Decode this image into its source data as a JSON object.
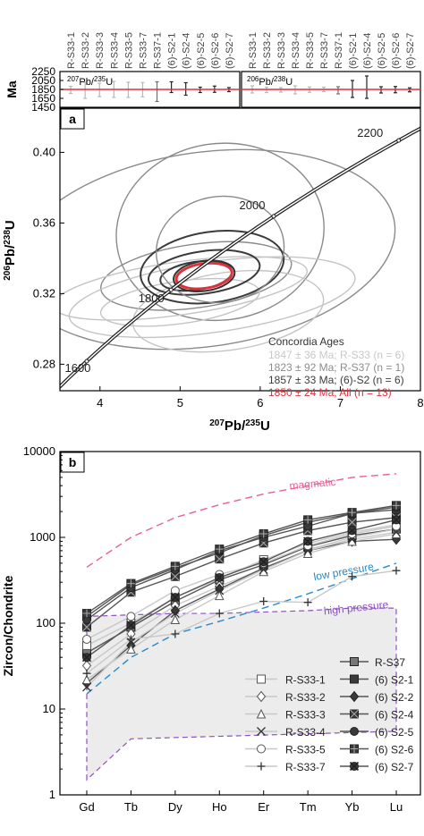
{
  "chart_data": [
    {
      "type": "scatter",
      "panel": "top-left",
      "label": "207Pb/235U",
      "ylabel": "Ma",
      "ylim": [
        1450,
        2250
      ],
      "yticks": [
        1450,
        1650,
        1850,
        2050,
        2250
      ],
      "samples": [
        "R-S33-1",
        "R-S33-2",
        "R-S33-3",
        "R-S33-4",
        "R-S33-5",
        "R-S33-7",
        "R-S37-1",
        "(6)-S2-1",
        "(6)-S2-4",
        "(6)-S2-5",
        "(6)-S2-6",
        "(6)-S2-7"
      ],
      "ages": [
        1840,
        1830,
        1840,
        1850,
        1840,
        1845,
        1800,
        1900,
        1860,
        1840,
        1855,
        1845
      ],
      "errors": [
        80,
        180,
        150,
        180,
        170,
        160,
        220,
        120,
        140,
        60,
        70,
        45
      ],
      "mean": 1850
    },
    {
      "type": "scatter",
      "panel": "top-right",
      "label": "206Pb/238U",
      "ylim": [
        1450,
        2250
      ],
      "samples": [
        "R-S33-1",
        "R-S33-2",
        "R-S33-3",
        "R-S33-4",
        "R-S33-5",
        "R-S33-7",
        "R-S37-1",
        "(6)-S2-1",
        "(6)-S2-4",
        "(6)-S2-5",
        "(6)-S2-6",
        "(6)-S2-7"
      ],
      "ages": [
        1850,
        1840,
        1840,
        1840,
        1845,
        1850,
        1830,
        1860,
        1900,
        1840,
        1845,
        1840
      ],
      "errors": [
        80,
        60,
        50,
        90,
        60,
        50,
        80,
        190,
        250,
        70,
        70,
        45
      ],
      "mean": 1850
    },
    {
      "type": "scatter",
      "panel": "a",
      "panel_label": "a",
      "xlabel": "207Pb/235U",
      "ylabel": "206Pb/238U",
      "xlim": [
        3.5,
        8
      ],
      "ylim": [
        0.265,
        0.425
      ],
      "xticks": [
        4,
        5,
        6,
        7,
        8
      ],
      "yticks": [
        0.28,
        0.32,
        0.36,
        0.4
      ],
      "concordia_labels": [
        "1600",
        "1800",
        "2000",
        "2200"
      ],
      "concordia_ages": [
        1600,
        1800,
        2000,
        2200
      ],
      "ellipses": [
        {
          "x": 5.3,
          "y": 0.345,
          "rx": 2.4,
          "ry": 0.055,
          "color": "gray"
        },
        {
          "x": 5.5,
          "y": 0.355,
          "rx": 1.3,
          "ry": 0.05,
          "color": "gray"
        },
        {
          "x": 5.2,
          "y": 0.33,
          "rx": 1.2,
          "ry": 0.018,
          "color": "gray"
        },
        {
          "x": 5.0,
          "y": 0.323,
          "rx": 1.6,
          "ry": 0.015,
          "color": "lightgray"
        },
        {
          "x": 5.4,
          "y": 0.318,
          "rx": 1.8,
          "ry": 0.02,
          "color": "lightgray"
        },
        {
          "x": 5.6,
          "y": 0.31,
          "rx": 1.2,
          "ry": 0.022,
          "color": "lightgray"
        },
        {
          "x": 5.0,
          "y": 0.315,
          "rx": 1.0,
          "ry": 0.012,
          "color": "lightgray"
        },
        {
          "x": 5.3,
          "y": 0.332,
          "rx": 0.7,
          "ry": 0.012,
          "color": "dark"
        },
        {
          "x": 5.4,
          "y": 0.335,
          "rx": 0.9,
          "ry": 0.02,
          "color": "dark"
        },
        {
          "x": 5.2,
          "y": 0.33,
          "rx": 0.45,
          "ry": 0.008,
          "color": "dark"
        },
        {
          "x": 5.5,
          "y": 0.345,
          "rx": 0.8,
          "ry": 0.03,
          "color": "gray"
        },
        {
          "x": 5.3,
          "y": 0.33,
          "rx": 0.35,
          "ry": 0.007,
          "color": "red"
        }
      ],
      "legend_title": "Concordia Ages",
      "legend": [
        {
          "text": "1847 ± 36 Ma; R-S33 (n = 6)",
          "color": "#c8c8c8"
        },
        {
          "text": "1823 ± 92 Ma; R-S37 (n = 1)",
          "color": "#8c8c8c"
        },
        {
          "text": "1857 ± 33 Ma; (6)-S2 (n = 6)",
          "color": "#3c3c3c"
        },
        {
          "text": "1850 ± 24 Ma; All (n = 13)",
          "color": "#e0303a"
        }
      ]
    },
    {
      "type": "line",
      "panel": "b",
      "panel_label": "b",
      "ylabel": "Zircon/Chondrite",
      "yscale": "log",
      "ylim": [
        1,
        10000
      ],
      "yticks": [
        1,
        10,
        100,
        1000,
        10000
      ],
      "categories": [
        "Gd",
        "Tb",
        "Dy",
        "Ho",
        "Er",
        "Tm",
        "Yb",
        "Lu"
      ],
      "series": [
        {
          "name": "R-S37",
          "marker": "square-filled-gray",
          "values": [
            45,
            90,
            180,
            320,
            480,
            780,
            1050,
            1250
          ]
        },
        {
          "name": "R-S33-1",
          "marker": "square-open",
          "values": [
            55,
            100,
            200,
            330,
            550,
            850,
            1150,
            1400
          ]
        },
        {
          "name": "(6) S2-1",
          "marker": "square-filled",
          "values": [
            120,
            280,
            440,
            660,
            1050,
            1500,
            1900,
            2100
          ]
        },
        {
          "name": "R-S33-2",
          "marker": "diamond-open",
          "values": [
            32,
            75,
            160,
            270,
            430,
            720,
            1000,
            1250
          ]
        },
        {
          "name": "(6) S2-2",
          "marker": "diamond-filled",
          "values": [
            20,
            55,
            140,
            250,
            440,
            700,
            900,
            950
          ]
        },
        {
          "name": "R-S33-3",
          "marker": "triangle-open",
          "values": [
            22,
            50,
            110,
            210,
            400,
            650,
            900,
            1100
          ]
        },
        {
          "name": "(6) S2-4",
          "marker": "x-box",
          "values": [
            90,
            230,
            350,
            560,
            860,
            1200,
            1500,
            1700
          ]
        },
        {
          "name": "R-S33-4",
          "marker": "x",
          "values": [
            18,
            60,
            130,
            240,
            420,
            700,
            950,
            1150
          ]
        },
        {
          "name": "(6) S2-5",
          "marker": "circle-filled",
          "values": [
            110,
            260,
            420,
            700,
            1000,
            1350,
            1900,
            2250
          ]
        },
        {
          "name": "R-S33-5",
          "marker": "circle-open",
          "values": [
            65,
            120,
            240,
            370,
            500,
            800,
            1100,
            1350
          ]
        },
        {
          "name": "(6) S2-6",
          "marker": "plus-box",
          "values": [
            130,
            290,
            460,
            730,
            1100,
            1600,
            1950,
            2350
          ]
        },
        {
          "name": "R-S33-7",
          "marker": "plus",
          "values": [
            26,
            65,
            75,
            130,
            180,
            175,
            350,
            410
          ]
        },
        {
          "name": "(6) S2-7",
          "marker": "x-circle",
          "values": [
            40,
            95,
            200,
            340,
            520,
            900,
            1200,
            1600
          ]
        }
      ],
      "fields": [
        {
          "label": "magmatic",
          "color": "#e8609a",
          "values": [
            450,
            1000,
            1700,
            2400,
            3200,
            4000,
            5000,
            5500
          ]
        },
        {
          "label": "low pressure",
          "color": "#2a8ac8",
          "values": [
            15,
            40,
            75,
            105,
            150,
            220,
            330,
            500
          ]
        },
        {
          "label": "high pressure",
          "color": "#9050c0",
          "values": [
            120,
            125,
            130,
            130,
            135,
            140,
            150,
            150
          ]
        }
      ]
    }
  ]
}
